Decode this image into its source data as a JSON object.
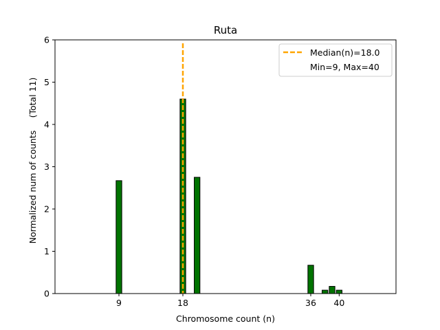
{
  "chart_data": {
    "type": "bar",
    "title": "Ruta",
    "xlabel": "Chromosome count (n)",
    "ylabel": "Normalized num of counts",
    "ylabel_secondary": "(Total 11)",
    "xlim": [
      0,
      48
    ],
    "ylim": [
      0,
      6
    ],
    "x_ticks": [
      9,
      18,
      36,
      40
    ],
    "y_ticks": [
      0,
      1,
      2,
      3,
      4,
      5,
      6
    ],
    "bar_width": 0.8,
    "bar_color": "#007300",
    "bar_edge_color": "#000000",
    "bars": [
      {
        "x": 9,
        "value": 2.67
      },
      {
        "x": 18,
        "value": 4.6
      },
      {
        "x": 20,
        "value": 2.75
      },
      {
        "x": 36,
        "value": 0.67
      },
      {
        "x": 38,
        "value": 0.08
      },
      {
        "x": 39,
        "value": 0.17
      },
      {
        "x": 40,
        "value": 0.08
      }
    ],
    "median": {
      "value": 18.0,
      "color": "#ffa500",
      "style": "dashed"
    },
    "legend": {
      "position": "top-right",
      "entries": [
        "Median(n)=18.0",
        "Min=9, Max=40"
      ]
    }
  }
}
